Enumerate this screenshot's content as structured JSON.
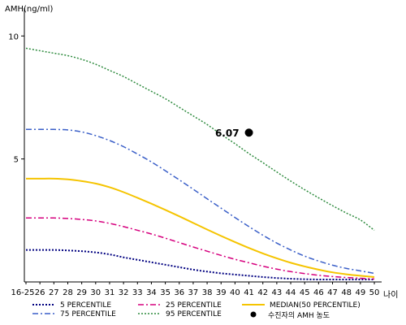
{
  "chart_data": {
    "type": "line",
    "ylabel": "AMH(ng/ml)",
    "xlabel": "나이",
    "x_labels": [
      "16-25",
      "26",
      "27",
      "28",
      "29",
      "30",
      "31",
      "32",
      "33",
      "34",
      "35",
      "36",
      "37",
      "38",
      "39",
      "40",
      "41",
      "42",
      "43",
      "44",
      "45",
      "46",
      "47",
      "48",
      "49",
      "50"
    ],
    "ylim": [
      0,
      11
    ],
    "y_ticks": [
      5,
      10
    ],
    "grid": false,
    "series": [
      {
        "name": "5 PERCENTILE",
        "color": "#000080",
        "dash": "2,2",
        "width": 2,
        "values": [
          1.3,
          1.3,
          1.3,
          1.28,
          1.25,
          1.2,
          1.12,
          1.0,
          0.9,
          0.8,
          0.7,
          0.6,
          0.5,
          0.42,
          0.35,
          0.3,
          0.25,
          0.2,
          0.16,
          0.13,
          0.11,
          0.1,
          0.1,
          0.1,
          0.1,
          0.1
        ]
      },
      {
        "name": "25 PERCENTILE",
        "color": "#d6007e",
        "dash": "7,3,2,3",
        "width": 1.5,
        "values": [
          2.6,
          2.6,
          2.6,
          2.58,
          2.54,
          2.48,
          2.38,
          2.25,
          2.1,
          1.95,
          1.78,
          1.6,
          1.42,
          1.25,
          1.08,
          0.92,
          0.78,
          0.64,
          0.52,
          0.42,
          0.34,
          0.27,
          0.22,
          0.18,
          0.15,
          0.12
        ]
      },
      {
        "name": "MEDIAN(50 PERCENTILE)",
        "color": "#f5c400",
        "dash": "",
        "width": 2,
        "values": [
          4.2,
          4.2,
          4.2,
          4.17,
          4.1,
          4.0,
          3.85,
          3.65,
          3.42,
          3.18,
          2.93,
          2.67,
          2.4,
          2.13,
          1.87,
          1.62,
          1.38,
          1.16,
          0.96,
          0.78,
          0.63,
          0.5,
          0.39,
          0.31,
          0.25,
          0.2
        ]
      },
      {
        "name": "75 PERCENTILE",
        "color": "#3a5fc8",
        "dash": "7,3,2,3",
        "width": 1.5,
        "values": [
          6.2,
          6.2,
          6.2,
          6.18,
          6.1,
          5.95,
          5.75,
          5.5,
          5.2,
          4.88,
          4.52,
          4.15,
          3.77,
          3.38,
          3.0,
          2.62,
          2.25,
          1.9,
          1.58,
          1.3,
          1.05,
          0.85,
          0.68,
          0.55,
          0.45,
          0.35
        ]
      },
      {
        "name": "95 PERCENTILE",
        "color": "#2e8b3e",
        "dash": "2,2",
        "width": 1.5,
        "values": [
          9.5,
          9.4,
          9.3,
          9.2,
          9.05,
          8.85,
          8.6,
          8.35,
          8.05,
          7.75,
          7.45,
          7.1,
          6.75,
          6.4,
          6.0,
          5.62,
          5.22,
          4.85,
          4.47,
          4.1,
          3.75,
          3.42,
          3.1,
          2.8,
          2.52,
          2.1
        ]
      }
    ],
    "patient": {
      "label": "수진자의 AMH 농도",
      "x": "41",
      "value": 6.07,
      "value_label": "6.07"
    },
    "legend_position": "bottom"
  }
}
